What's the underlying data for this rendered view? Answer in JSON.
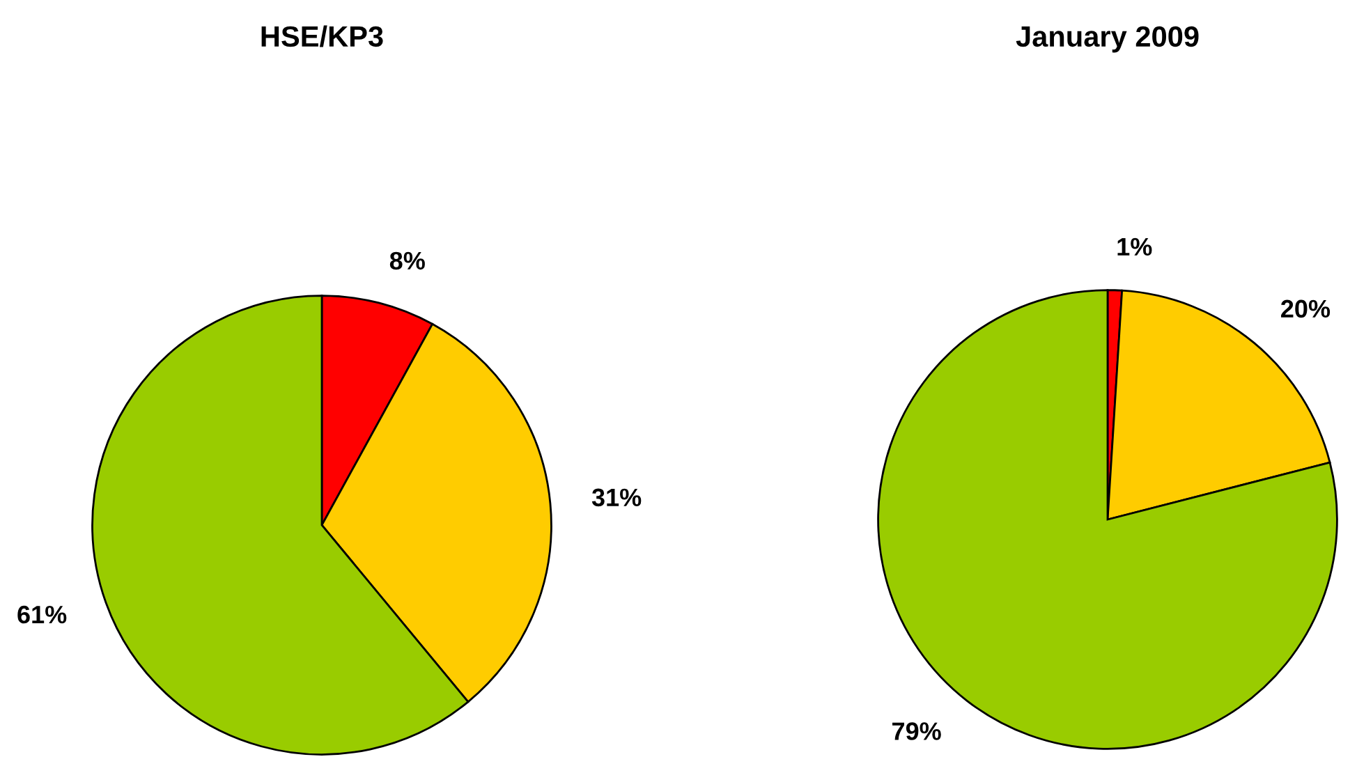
{
  "chart_data": [
    {
      "type": "pie",
      "title": "HSE/KP3",
      "categories": [
        null,
        null,
        null
      ],
      "values": [
        8,
        31,
        61
      ],
      "colors": [
        "#ff0000",
        "#ffcc00",
        "#99cc00"
      ],
      "data_labels": true,
      "value_labels": [
        "8%",
        "31%",
        "61%"
      ]
    },
    {
      "type": "pie",
      "title": "January 2009",
      "categories": [
        null,
        null,
        null
      ],
      "values": [
        1,
        20,
        79
      ],
      "colors": [
        "#ff0000",
        "#ffcc00",
        "#99cc00"
      ],
      "data_labels": true,
      "value_labels": [
        "1%",
        "20%",
        "79%"
      ]
    }
  ]
}
